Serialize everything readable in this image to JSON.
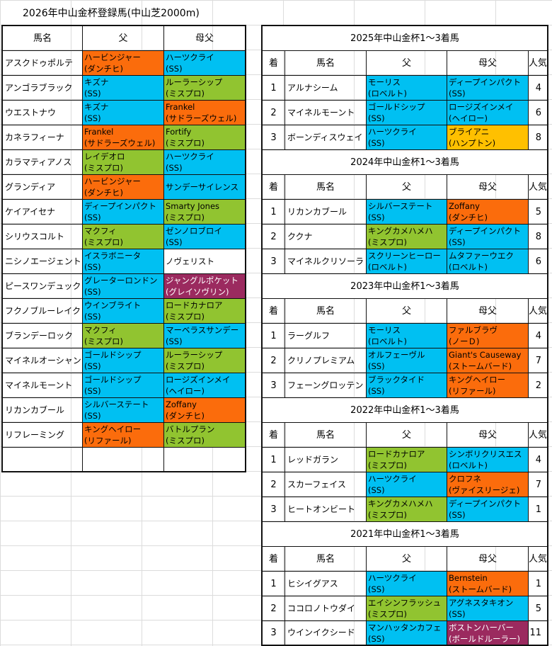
{
  "sheet_title": "2026年中山金杯登録馬(中山芝2000m)",
  "registered": {
    "headers": [
      "馬名",
      "父",
      "母父"
    ],
    "rows": [
      {
        "horse": "アスクドゥポルテ",
        "sire": "ハービンジャー",
        "sire_line": "(ダンチヒ)",
        "sire_color": "#fb6c0c",
        "dam_sire": "ハーツクライ",
        "dam_sire_line": "(SS)",
        "dam_sire_color": "#00c0f2"
      },
      {
        "horse": "アンゴラブラック",
        "sire": "キズナ",
        "sire_line": "(SS)",
        "sire_color": "#00c0f2",
        "dam_sire": "ルーラーシップ",
        "dam_sire_line": "(ミスプロ)",
        "dam_sire_color": "#91c430"
      },
      {
        "horse": "ウエストナウ",
        "sire": "キズナ",
        "sire_line": "(SS)",
        "sire_color": "#00c0f2",
        "dam_sire": "Frankel",
        "dam_sire_line": "(サドラーズウェル)",
        "dam_sire_color": "#fb6c0c"
      },
      {
        "horse": "カネラフィーナ",
        "sire": "Frankel",
        "sire_line": "(サドラーズウェル)",
        "sire_color": "#fb6c0c",
        "dam_sire": "Fortify",
        "dam_sire_line": "(ミスプロ)",
        "dam_sire_color": "#91c430"
      },
      {
        "horse": "カラマティアノス",
        "sire": "レイデオロ",
        "sire_line": "(ミスプロ)",
        "sire_color": "#91c430",
        "dam_sire": "ハーツクライ",
        "dam_sire_line": "(SS)",
        "dam_sire_color": "#00c0f2"
      },
      {
        "horse": "グランディア",
        "sire": "ハービンジャー",
        "sire_line": "(ダンチヒ)",
        "sire_color": "#fb6c0c",
        "dam_sire": "サンデーサイレンス",
        "dam_sire_line": "",
        "dam_sire_color": "#00c0f2"
      },
      {
        "horse": "ケイアイセナ",
        "sire": "ディープインパクト",
        "sire_line": "(SS)",
        "sire_color": "#00c0f2",
        "dam_sire": "Smarty Jones",
        "dam_sire_line": "(ミスプロ)",
        "dam_sire_color": "#91c430"
      },
      {
        "horse": "シリウスコルト",
        "sire": "マクフィ",
        "sire_line": "(ミスプロ)",
        "sire_color": "#91c430",
        "dam_sire": "ゼンノロブロイ",
        "dam_sire_line": "(SS)",
        "dam_sire_color": "#00c0f2"
      },
      {
        "horse": "ニシノエージェント",
        "sire": "イスラボニータ",
        "sire_line": "(SS)",
        "sire_color": "#00c0f2",
        "dam_sire": "ノヴェリスト",
        "dam_sire_line": "",
        "dam_sire_color": "#ffffff"
      },
      {
        "horse": "ピースワンデュック",
        "sire": "グレーターロンドン",
        "sire_line": "(SS)",
        "sire_color": "#00c0f2",
        "dam_sire": "ジャングルポケット",
        "dam_sire_line": "(グレイソヴリン)",
        "dam_sire_color": "#9b2a5f"
      },
      {
        "horse": "フクノブルーレイク",
        "sire": "ウインブライト",
        "sire_line": "(SS)",
        "sire_color": "#00c0f2",
        "dam_sire": "ロードカナロア",
        "dam_sire_line": "(ミスプロ)",
        "dam_sire_color": "#91c430"
      },
      {
        "horse": "ブランデーロック",
        "sire": "マクフィ",
        "sire_line": "(ミスプロ)",
        "sire_color": "#91c430",
        "dam_sire": "マーベラスサンデー",
        "dam_sire_line": "(SS)",
        "dam_sire_color": "#00c0f2"
      },
      {
        "horse": "マイネルオーシャン",
        "sire": "ゴールドシップ",
        "sire_line": "(SS)",
        "sire_color": "#00c0f2",
        "dam_sire": "ルーラーシップ",
        "dam_sire_line": "(ミスプロ)",
        "dam_sire_color": "#91c430"
      },
      {
        "horse": "マイネルモーント",
        "sire": "ゴールドシップ",
        "sire_line": "(SS)",
        "sire_color": "#00c0f2",
        "dam_sire": "ロージズインメイ",
        "dam_sire_line": "(ヘイロー)",
        "dam_sire_color": "#00c0f2"
      },
      {
        "horse": "リカンカブール",
        "sire": "シルバーステート",
        "sire_line": "(SS)",
        "sire_color": "#00c0f2",
        "dam_sire": "Zoffany",
        "dam_sire_line": "(ダンチヒ)",
        "dam_sire_color": "#fb6c0c"
      },
      {
        "horse": "リフレーミング",
        "sire": "キングヘイロー",
        "sire_line": "(リファール)",
        "sire_color": "#fb6c0c",
        "dam_sire": "バトルプラン",
        "dam_sire_line": "(ミスプロ)",
        "dam_sire_color": "#91c430"
      }
    ]
  },
  "past_headers": [
    "着",
    "馬名",
    "父",
    "母父",
    "人気"
  ],
  "past_results": [
    {
      "title": "2025年中山金杯1～3着馬",
      "rows": [
        {
          "rank": "1",
          "horse": "アルナシーム",
          "sire": "モーリス",
          "sire_line": "(ロベルト)",
          "sire_color": "#00c0f2",
          "dam_sire": "ディープインパクト",
          "dam_sire_line": "(SS)",
          "dam_sire_color": "#00c0f2",
          "pop": "4"
        },
        {
          "rank": "2",
          "horse": "マイネルモーント",
          "sire": "ゴールドシップ",
          "sire_line": "(SS)",
          "sire_color": "#00c0f2",
          "dam_sire": "ロージズインメイ",
          "dam_sire_line": "(ヘイロー)",
          "dam_sire_color": "#00c0f2",
          "pop": "6"
        },
        {
          "rank": "3",
          "horse": "ボーンディスウェイ",
          "sire": "ハーツクライ",
          "sire_line": "(SS)",
          "sire_color": "#00c0f2",
          "dam_sire": "ブライアニ",
          "dam_sire_line": "(ハンプトン)",
          "dam_sire_color": "#ffc000",
          "pop": "8"
        }
      ]
    },
    {
      "title": "2024年中山金杯1～3着馬",
      "rows": [
        {
          "rank": "1",
          "horse": "リカンカブール",
          "sire": "シルバーステート",
          "sire_line": "(SS)",
          "sire_color": "#00c0f2",
          "dam_sire": "Zoffany",
          "dam_sire_line": "(ダンチヒ)",
          "dam_sire_color": "#fb6c0c",
          "pop": "5"
        },
        {
          "rank": "2",
          "horse": "ククナ",
          "sire": "キングカメハメハ",
          "sire_line": "(ミスプロ)",
          "sire_color": "#91c430",
          "dam_sire": "ディープインパクト",
          "dam_sire_line": "(SS)",
          "dam_sire_color": "#00c0f2",
          "pop": "8"
        },
        {
          "rank": "3",
          "horse": "マイネルクリソーラ",
          "sire": "スクリーンヒーロー",
          "sire_line": "(ロベルト)",
          "sire_color": "#00c0f2",
          "dam_sire": "ムタファーウエク",
          "dam_sire_line": "(ロベルト)",
          "dam_sire_color": "#00c0f2",
          "pop": "6"
        }
      ]
    },
    {
      "title": "2023年中山金杯1～3着馬",
      "rows": [
        {
          "rank": "1",
          "horse": "ラーグルフ",
          "sire": "モーリス",
          "sire_line": "(ロベルト)",
          "sire_color": "#00c0f2",
          "dam_sire": "ファルブラヴ",
          "dam_sire_line": "(ノーＤ)",
          "dam_sire_color": "#fb6c0c",
          "pop": "4"
        },
        {
          "rank": "2",
          "horse": "クリノプレミアム",
          "sire": "オルフェーヴル",
          "sire_line": "(SS)",
          "sire_color": "#00c0f2",
          "dam_sire": "Giant's Causeway",
          "dam_sire_line": "(ストームバード)",
          "dam_sire_color": "#fb6c0c",
          "pop": "7"
        },
        {
          "rank": "3",
          "horse": "フェーングロッテン",
          "sire": "ブラックタイド",
          "sire_line": "(SS)",
          "sire_color": "#00c0f2",
          "dam_sire": "キングヘイロー",
          "dam_sire_line": "(リファール)",
          "dam_sire_color": "#fb6c0c",
          "pop": "2"
        }
      ]
    },
    {
      "title": "2022年中山金杯1～3着馬",
      "rows": [
        {
          "rank": "1",
          "horse": "レッドガラン",
          "sire": "ロードカナロア",
          "sire_line": "(ミスプロ)",
          "sire_color": "#91c430",
          "dam_sire": "シンボリクリスエス",
          "dam_sire_line": "(ロベルト)",
          "dam_sire_color": "#00c0f2",
          "pop": "4"
        },
        {
          "rank": "2",
          "horse": "スカーフェイス",
          "sire": "ハーツクライ",
          "sire_line": "(SS)",
          "sire_color": "#00c0f2",
          "dam_sire": "クロフネ",
          "dam_sire_line": "(ヴァイスリージェ)",
          "dam_sire_color": "#fb6c0c",
          "pop": "7"
        },
        {
          "rank": "3",
          "horse": "ヒートオンビート",
          "sire": "キングカメハメハ",
          "sire_line": "(ミスプロ)",
          "sire_color": "#91c430",
          "dam_sire": "ディープインパクト",
          "dam_sire_line": "(SS)",
          "dam_sire_color": "#00c0f2",
          "pop": "1"
        }
      ]
    },
    {
      "title": "2021年中山金杯1～3着馬",
      "rows": [
        {
          "rank": "1",
          "horse": "ヒシイグアス",
          "sire": "ハーツクライ",
          "sire_line": "(SS)",
          "sire_color": "#00c0f2",
          "dam_sire": "Bernstein",
          "dam_sire_line": "(ストームバード)",
          "dam_sire_color": "#fb6c0c",
          "pop": "1"
        },
        {
          "rank": "2",
          "horse": "ココロノトウダイ",
          "sire": "エイシンフラッシュ",
          "sire_line": "(ミスプロ)",
          "sire_color": "#91c430",
          "dam_sire": "アグネスタキオン",
          "dam_sire_line": "(SS)",
          "dam_sire_color": "#00c0f2",
          "pop": "5"
        },
        {
          "rank": "3",
          "horse": "ウインイクシード",
          "sire": "マンハッタンカフェ",
          "sire_line": "(SS)",
          "sire_color": "#00c0f2",
          "dam_sire": "ボストンハーバー",
          "dam_sire_line": "(ボールドルーラー)",
          "dam_sire_color": "#9b2a5f",
          "pop": "11"
        }
      ]
    }
  ]
}
